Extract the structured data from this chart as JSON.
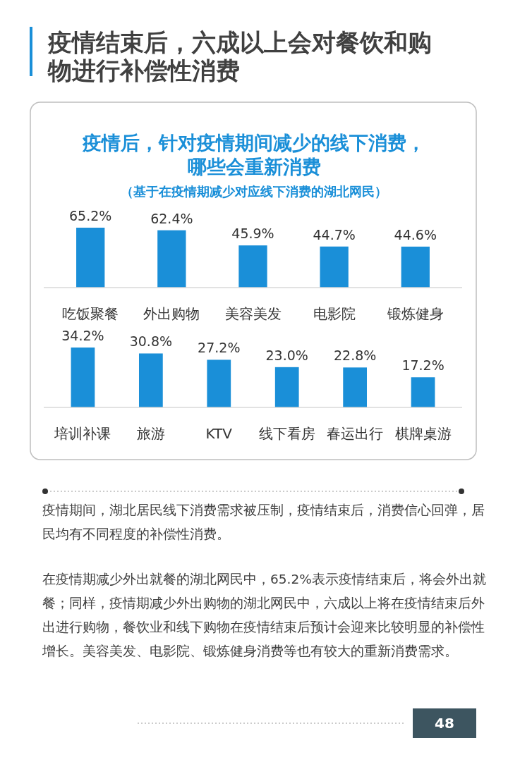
{
  "chart_data": [
    {
      "type": "bar",
      "title": "疫情后，针对疫情期间减少的线下消费，哪些会重新消费",
      "subtitle": "（基于在疫情期减少对应线下消费的湖北网民）",
      "categories": [
        "吃饭聚餐",
        "外出购物",
        "美容美发",
        "电影院",
        "锻炼健身"
      ],
      "values": [
        65.2,
        62.4,
        45.9,
        44.7,
        44.6
      ],
      "value_labels": [
        "65.2%",
        "62.4%",
        "45.9%",
        "44.7%",
        "44.6%"
      ],
      "color": "#1a8fd8",
      "annotations": [
        "疫情结束后，六成以上会对餐饮和购物进行补偿性消费",
        "疫情期间，湖北居民线下消费需求被压制，疫情结束后，消费信心回弹，居民均有不同程度的补偿性消费。",
        "在疫情期减少外出就餐的湖北网民中，65.2%表示疫情结束后，将会外出就餐；同样，疫情期减少外出购物的湖北网民中，六成以上将在疫情结束后外出进行购物，餐饮业和线下购物在疫情结束后预计会迎来比较明显的补偿性增长。美容美发、电影院、锻炼健身消费等也有较大的重新消费需求。",
        "48"
      ]
    },
    {
      "type": "bar",
      "categories": [
        "培训补课",
        "旅游",
        "KTV",
        "线下看房",
        "春运出行",
        "棋牌桌游"
      ],
      "values": [
        34.2,
        30.8,
        27.2,
        23.0,
        22.8,
        17.2
      ],
      "value_labels": [
        "34.2%",
        "30.8%",
        "27.2%",
        "23.0%",
        "22.8%",
        "17.2%"
      ],
      "color": "#1a8fd8"
    }
  ]
}
